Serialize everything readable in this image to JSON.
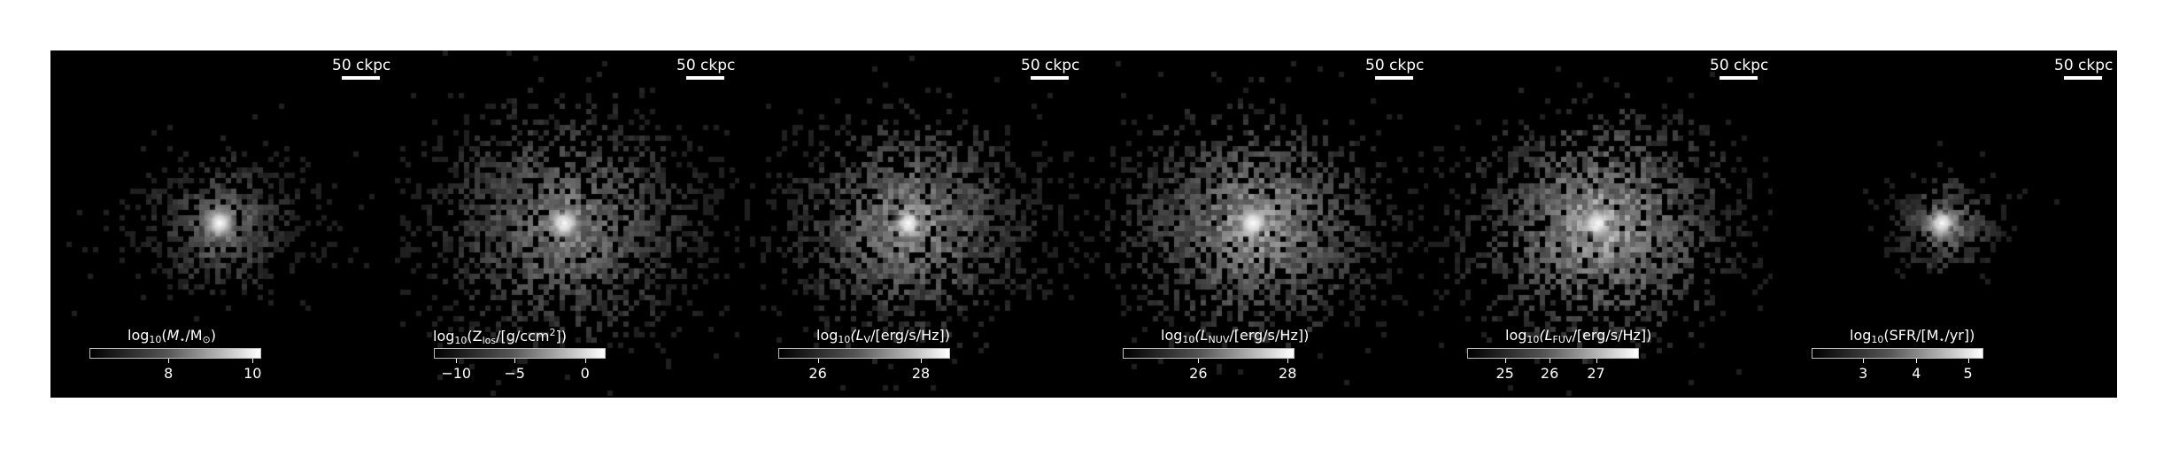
{
  "scalebar_text": "50 ckpc",
  "panels": [
    {
      "id": "stellar-mass",
      "cbar_label_parts": [
        "log",
        "10",
        "(",
        "M",
        "⋆",
        "/M",
        "⊙",
        ")"
      ],
      "ticks": [
        "8",
        "10"
      ],
      "tick_fracs": [
        0.46,
        0.95
      ],
      "map": {
        "spread": 42,
        "count": 700,
        "core": 1.0,
        "brightness": 0.55
      }
    },
    {
      "id": "metallicity",
      "cbar_label_parts": [
        "log",
        "10",
        "(Z",
        "los",
        "/[g/ccm",
        "2",
        "])"
      ],
      "ticks": [
        "−10",
        "−5",
        "0"
      ],
      "tick_fracs": [
        0.13,
        0.47,
        0.88
      ],
      "map": {
        "spread": 70,
        "count": 1900,
        "core": 1.0,
        "brightness": 0.62
      }
    },
    {
      "id": "luminosity-v",
      "cbar_label_parts": [
        "log",
        "10",
        "(L",
        "V",
        "/[erg/s/Hz])"
      ],
      "ticks": [
        "26",
        "28"
      ],
      "tick_fracs": [
        0.23,
        0.83
      ],
      "map": {
        "spread": 62,
        "count": 1800,
        "core": 1.0,
        "brightness": 0.68
      }
    },
    {
      "id": "luminosity-nuv",
      "cbar_label_parts": [
        "log",
        "10",
        "(L",
        "NUV",
        "/[erg/s/Hz])"
      ],
      "ticks": [
        "26",
        "28"
      ],
      "tick_fracs": [
        0.44,
        0.96
      ],
      "map": {
        "spread": 64,
        "count": 1900,
        "core": 0.95,
        "brightness": 0.74
      }
    },
    {
      "id": "luminosity-fuv",
      "cbar_label_parts": [
        "log",
        "10",
        "(L",
        "FUV",
        "/[erg/s/Hz])"
      ],
      "ticks": [
        "25",
        "26",
        "27"
      ],
      "tick_fracs": [
        0.22,
        0.48,
        0.75
      ],
      "map": {
        "spread": 64,
        "count": 1900,
        "core": 0.95,
        "brightness": 0.8
      }
    },
    {
      "id": "sfr",
      "cbar_label_parts": [
        "log",
        "10",
        "(SFR/[M",
        "⋆",
        "/yr])"
      ],
      "ticks": [
        "3",
        "4",
        "5"
      ],
      "tick_fracs": [
        0.3,
        0.61,
        0.91
      ],
      "map": {
        "spread": 28,
        "count": 380,
        "core": 1.0,
        "brightness": 0.6
      }
    }
  ]
}
